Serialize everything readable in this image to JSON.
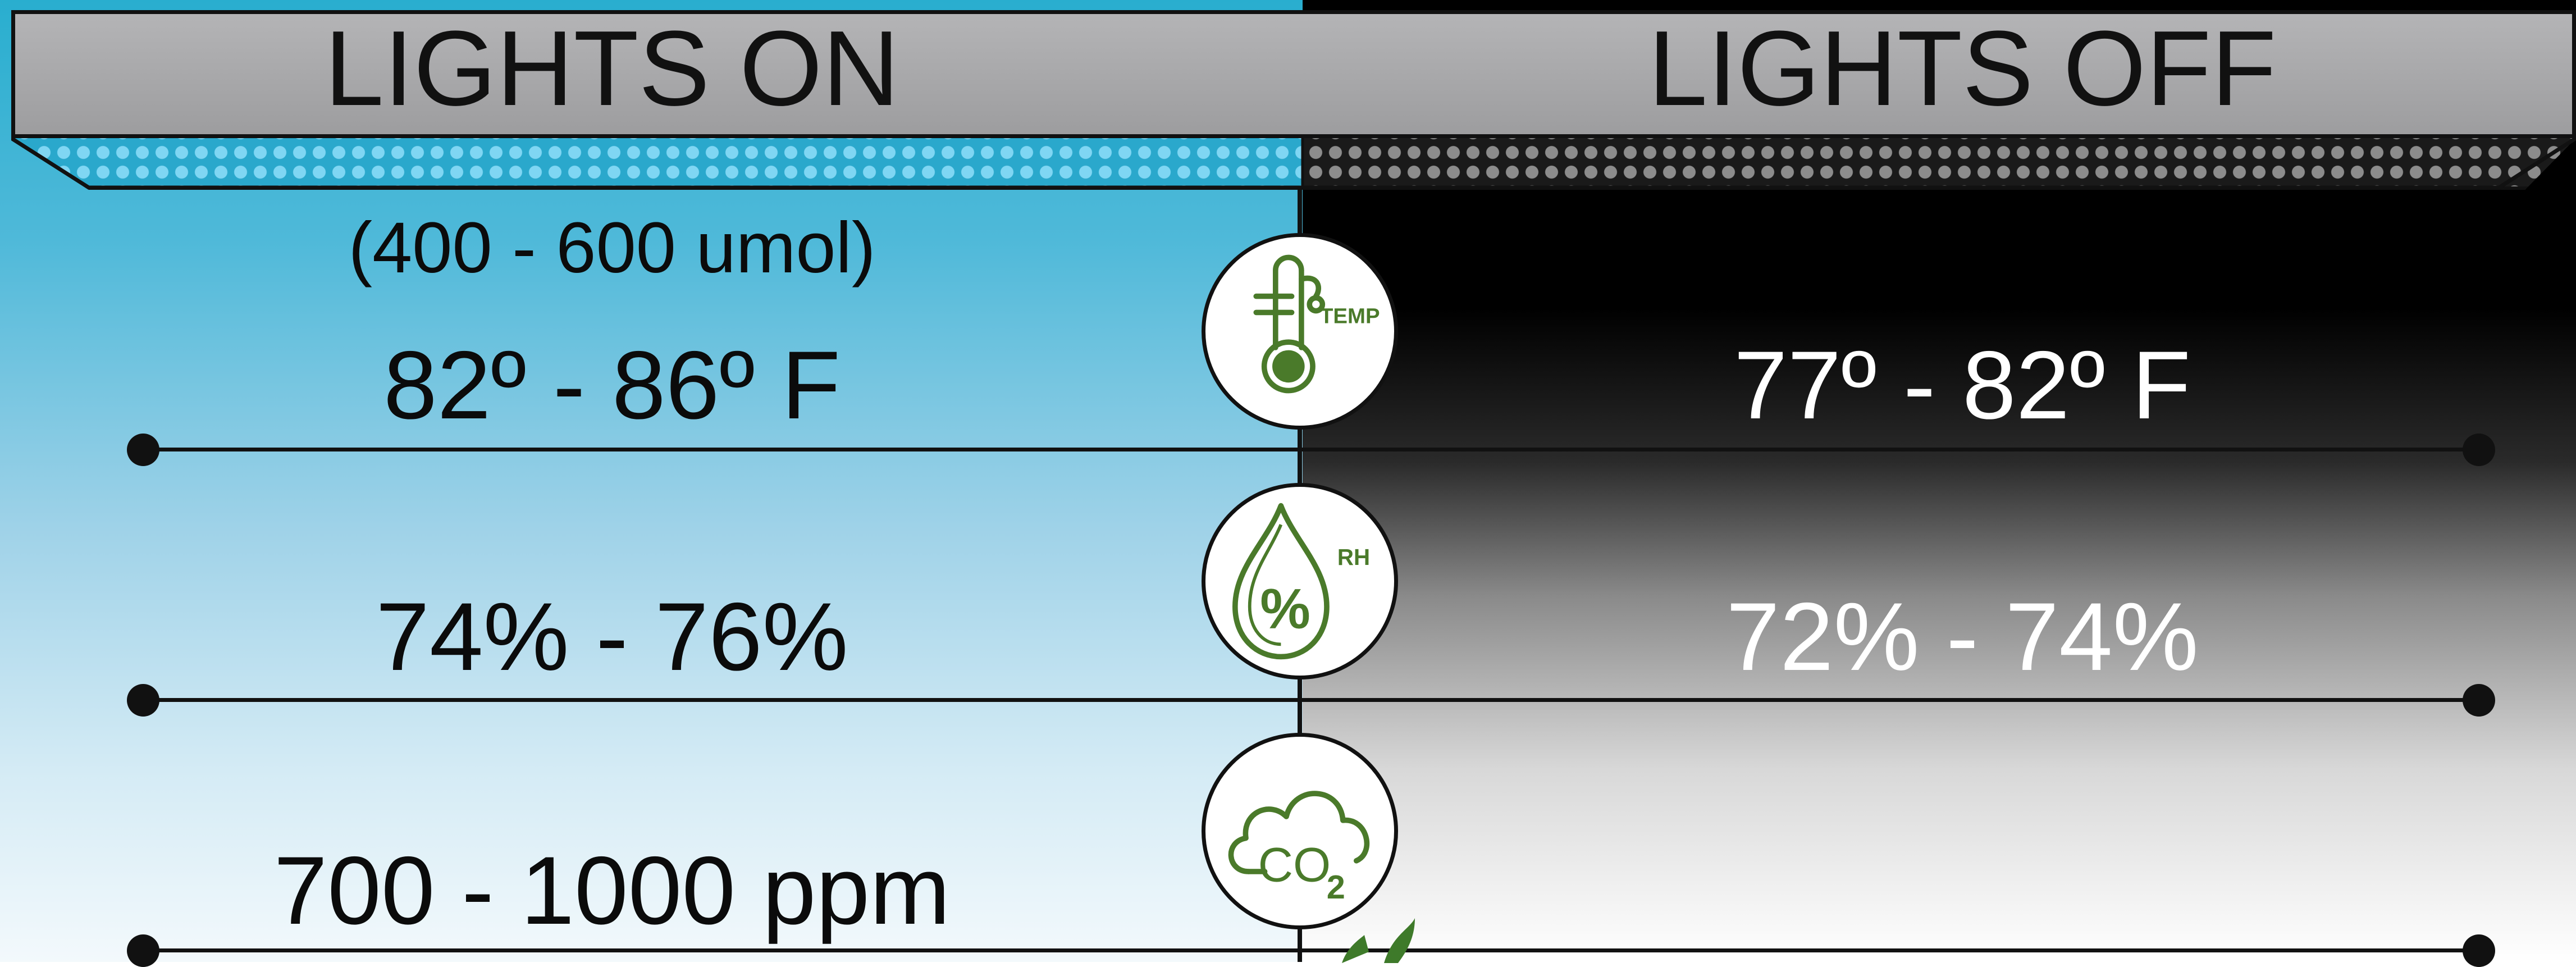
{
  "header": {
    "lights_on": "LIGHTS ON",
    "lights_off": "LIGHTS OFF"
  },
  "lights_on": {
    "ppfd": "(400 - 600 umol)",
    "temperature": "82º - 86º F",
    "humidity": "74% - 76%",
    "co2": "700 - 1000 ppm"
  },
  "lights_off": {
    "temperature": "77º - 82º F",
    "humidity": "72% - 74%"
  },
  "icons": {
    "temp": "thermometer-icon",
    "temp_label": "TEMP",
    "rh": "humidity-drop-icon",
    "rh_label": "RH",
    "rh_symbol": "%",
    "co2": "co2-cloud-icon",
    "co2_label": "CO",
    "co2_sub": "2"
  },
  "colors": {
    "lights_on_blue": "#29aecf",
    "lights_off_black": "#000000",
    "header_gray": "#a9a9ab",
    "icon_green": "#4a7a2a"
  }
}
